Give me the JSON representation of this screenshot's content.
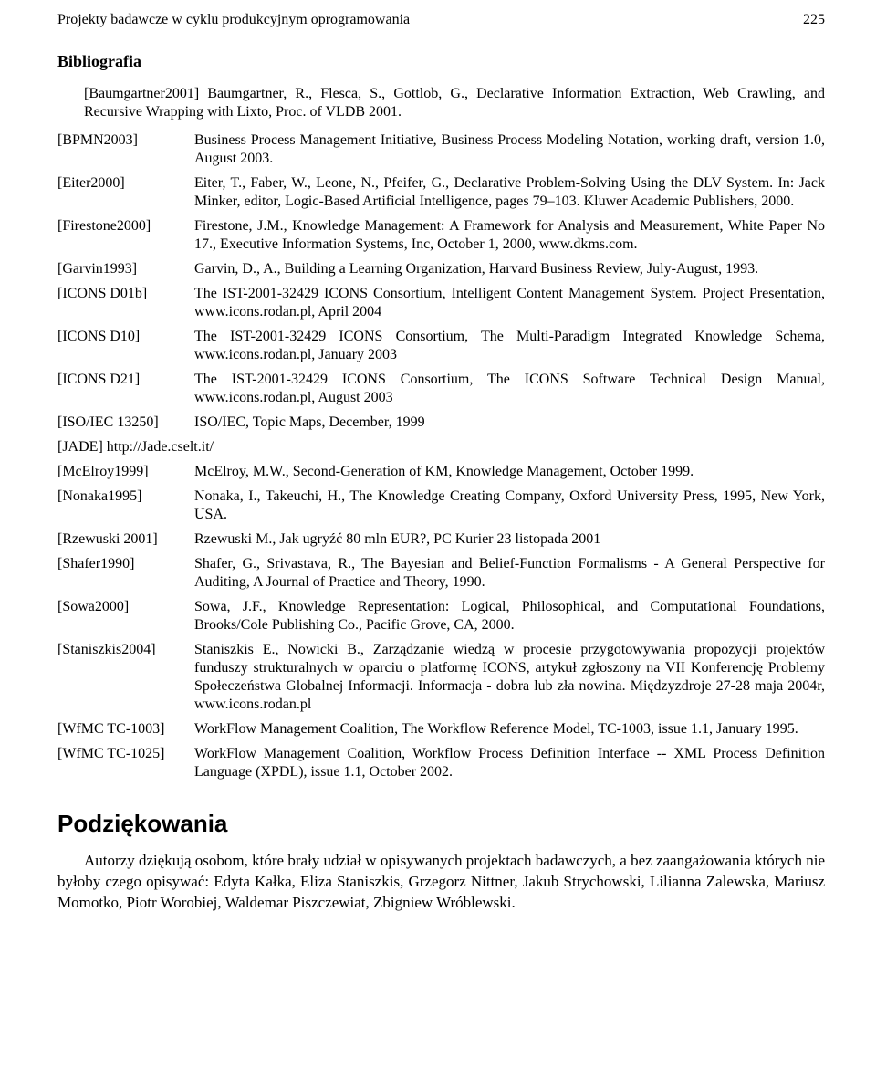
{
  "header": {
    "running_title": "Projekty badawcze w cyklu produkcyjnym oprogramowania",
    "page_number": "225"
  },
  "bibliography": {
    "title": "Bibliografia",
    "first_ref": "[Baumgartner2001] Baumgartner, R., Flesca, S., Gottlob, G., Declarative Information Extraction, Web Crawling, and Recursive Wrapping with Lixto, Proc. of VLDB 2001.",
    "entries": [
      {
        "key": "[BPMN2003]",
        "text": "Business Process Management Initiative, Business Process Modeling Notation, working draft, version 1.0, August 2003."
      },
      {
        "key": "[Eiter2000]",
        "text": "Eiter, T., Faber, W., Leone, N., Pfeifer, G., Declarative Problem-Solving Using the DLV System. In: Jack Minker, editor, Logic-Based Artificial Intelligence, pages 79–103. Kluwer Academic Publishers, 2000."
      },
      {
        "key": "[Firestone2000]",
        "text": "Firestone, J.M., Knowledge Management: A Framework for Analysis and Measurement, White Paper No 17., Executive Information Systems, Inc, October 1, 2000, www.dkms.com."
      },
      {
        "key": "[Garvin1993]",
        "text": "Garvin, D., A., Building a Learning Organization, Harvard Business Review, July-August, 1993."
      },
      {
        "key": "[ICONS D01b]",
        "text": "The IST-2001-32429 ICONS Consortium, Intelligent Content Management System. Project Presentation, www.icons.rodan.pl, April 2004"
      },
      {
        "key": "[ICONS D10]",
        "text": "The IST-2001-32429 ICONS Consortium, The Multi-Paradigm Integrated Knowledge Schema, www.icons.rodan.pl, January 2003"
      },
      {
        "key": "[ICONS D21]",
        "text": "The IST-2001-32429 ICONS Consortium, The ICONS Software Technical Design Manual, www.icons.rodan.pl, August 2003"
      },
      {
        "key": "[ISO/IEC 13250]",
        "text": "ISO/IEC, Topic Maps, December, 1999"
      }
    ],
    "jade": "[JADE] http://Jade.cselt.it/",
    "entries2": [
      {
        "key": "[McElroy1999]",
        "text": "McElroy, M.W., Second-Generation of KM, Knowledge Management, October 1999."
      },
      {
        "key": "[Nonaka1995]",
        "text": "Nonaka, I., Takeuchi, H., The Knowledge Creating Company, Oxford University Press, 1995, New York, USA."
      },
      {
        "key": "[Rzewuski 2001]",
        "text": "Rzewuski M., Jak ugryźć 80 mln EUR?, PC Kurier 23 listopada 2001"
      },
      {
        "key": "[Shafer1990]",
        "text": "Shafer, G., Srivastava, R., The Bayesian and Belief-Function Formalisms - A General Perspective for Auditing, A Journal of Practice and Theory, 1990."
      },
      {
        "key": "[Sowa2000]",
        "text": "Sowa, J.F., Knowledge Representation: Logical, Philosophical, and Computational Foundations, Brooks/Cole Publishing Co., Pacific Grove, CA, 2000."
      },
      {
        "key": "[Staniszkis2004]",
        "text": "Staniszkis E., Nowicki B., Zarządzanie wiedzą w procesie przygotowywania propozycji projektów funduszy strukturalnych w oparciu o platformę ICONS, artykuł zgłoszony na VII Konferencję Problemy Społeczeństwa Globalnej Informacji.  Informacja - dobra lub zła nowina. Międzyzdroje 27-28 maja 2004r, www.icons.rodan.pl"
      },
      {
        "key": "[WfMC TC-1003]",
        "text": "WorkFlow Management Coalition, The Workflow Reference Model, TC-1003, issue 1.1, January 1995."
      },
      {
        "key": "[WfMC TC-1025]",
        "text": "WorkFlow Management Coalition, Workflow Process Definition Interface -- XML Process Definition Language (XPDL), issue 1.1, October 2002."
      }
    ]
  },
  "ack": {
    "title": "Podziękowania",
    "body": "Autorzy dziękują osobom, które brały udział w opisywanych projektach badawczych, a bez zaangażowania których nie byłoby czego opisywać: Edyta Kałka, Eliza Staniszkis, Grzegorz Nittner, Jakub Strychowski, Lilianna Zalewska, Mariusz Momotko, Piotr Worobiej, Waldemar Piszczewiat, Zbigniew Wróblewski."
  }
}
